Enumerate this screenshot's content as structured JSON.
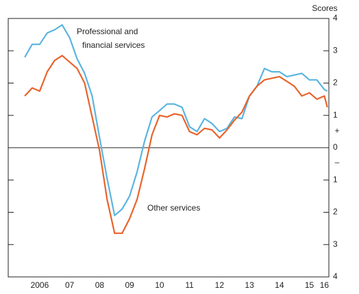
{
  "chart_data": {
    "type": "line",
    "y_axis_label": "Scores",
    "sign_labels": {
      "positive": "+",
      "negative": "–"
    },
    "annotations": [
      {
        "lines": [
          "Professional and",
          "financial services"
        ]
      },
      {
        "lines": [
          "Other services"
        ]
      }
    ],
    "x": [
      2006.0,
      2006.25,
      2006.5,
      2006.75,
      2007.0,
      2007.25,
      2007.5,
      2007.75,
      2008.0,
      2008.25,
      2008.5,
      2008.75,
      2009.0,
      2009.25,
      2009.5,
      2009.75,
      2010.0,
      2010.25,
      2010.5,
      2010.75,
      2011.0,
      2011.25,
      2011.5,
      2011.75,
      2012.0,
      2012.25,
      2012.5,
      2012.75,
      2013.0,
      2013.25,
      2013.5,
      2013.75,
      2014.0,
      2014.25,
      2014.5,
      2014.75,
      2015.0,
      2015.25,
      2015.5,
      2015.75,
      2016.0,
      2016.1
    ],
    "series": [
      {
        "name": "Professional and financial services",
        "color": "#5bb4e0",
        "values": [
          2.8,
          3.2,
          3.2,
          3.55,
          3.65,
          3.8,
          3.4,
          2.75,
          2.3,
          1.6,
          0.3,
          -0.95,
          -2.1,
          -1.9,
          -1.5,
          -0.75,
          0.2,
          0.95,
          1.15,
          1.35,
          1.35,
          1.25,
          0.65,
          0.5,
          0.9,
          0.75,
          0.5,
          0.6,
          0.95,
          0.9,
          1.6,
          1.9,
          2.45,
          2.35,
          2.35,
          2.2,
          2.25,
          2.3,
          2.1,
          2.1,
          1.8,
          1.75
        ]
      },
      {
        "name": "Other services",
        "color": "#e8632a",
        "values": [
          1.6,
          1.85,
          1.75,
          2.35,
          2.7,
          2.85,
          2.65,
          2.45,
          2.0,
          0.95,
          -0.1,
          -1.6,
          -2.65,
          -2.65,
          -2.2,
          -1.6,
          -0.65,
          0.4,
          1.0,
          0.95,
          1.05,
          1.0,
          0.5,
          0.4,
          0.6,
          0.55,
          0.3,
          0.55,
          0.85,
          1.1,
          1.6,
          1.9,
          2.1,
          2.15,
          2.2,
          2.05,
          1.9,
          1.6,
          1.7,
          1.5,
          1.6,
          1.25
        ]
      }
    ],
    "xlim": [
      2005.45,
      2016.15
    ],
    "xticks": [
      {
        "value": 2006.5,
        "label": "2006"
      },
      {
        "value": 2007.5,
        "label": "07"
      },
      {
        "value": 2008.5,
        "label": "08"
      },
      {
        "value": 2009.5,
        "label": "09"
      },
      {
        "value": 2010.5,
        "label": "10"
      },
      {
        "value": 2011.5,
        "label": "11"
      },
      {
        "value": 2012.5,
        "label": "12"
      },
      {
        "value": 2013.5,
        "label": "13"
      },
      {
        "value": 2014.5,
        "label": "14"
      },
      {
        "value": 2015.5,
        "label": "15"
      },
      {
        "value": 2016.0,
        "label": "16"
      }
    ],
    "ylim": [
      -4,
      4
    ],
    "yticks": [
      {
        "value": -4,
        "label": "4"
      },
      {
        "value": -3,
        "label": "3"
      },
      {
        "value": -2,
        "label": "2"
      },
      {
        "value": -1,
        "label": "1"
      },
      0,
      1,
      2,
      3,
      4
    ],
    "zero_line": true
  }
}
